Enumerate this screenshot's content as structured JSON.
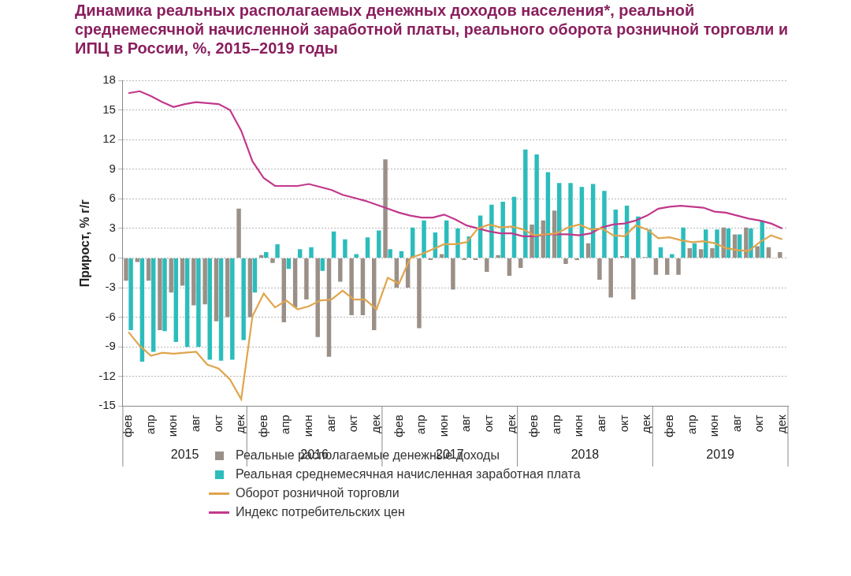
{
  "chart_data": {
    "type": "bar",
    "title": "Динамика реальных располагаемых денежных доходов населения*, реальной среднемесячной начисленной заработной платы, реального оборота розничной торговли и ИПЦ в России, %, 2015–2019 годы",
    "y_label": "Прирост, % г/г",
    "categories": [
      "фев",
      null,
      "апр",
      null,
      "июн",
      null,
      "авг",
      null,
      "окт",
      null,
      "дек",
      null,
      "фев",
      null,
      "апр",
      null,
      "июн",
      null,
      "авг",
      null,
      "окт",
      null,
      "дек",
      null,
      "фев",
      null,
      "апр",
      null,
      "июн",
      null,
      "авг",
      null,
      "окт",
      null,
      "дек",
      null,
      "фев",
      null,
      "апр",
      null,
      "июн",
      null,
      "авг",
      null,
      "окт",
      null,
      "дек",
      null,
      "фев",
      null,
      "апр",
      null,
      "июн",
      null,
      "авг",
      null,
      "окт",
      null,
      "дек"
    ],
    "category_groups": [
      {
        "label": "2015",
        "size": 11
      },
      {
        "label": "2016",
        "size": 12
      },
      {
        "label": "2017",
        "size": 12
      },
      {
        "label": "2018",
        "size": 12
      },
      {
        "label": "2019",
        "size": 12
      }
    ],
    "series": [
      {
        "name": "Реальные располагаемые денежные доходы",
        "type": "bar",
        "color": "#9a9088",
        "values": [
          -2.3,
          -0.4,
          -2.3,
          -7.3,
          -3.5,
          -2.8,
          -4.8,
          -4.7,
          -6.4,
          -6.0,
          5.0,
          -6.0,
          0.3,
          -0.5,
          -6.5,
          -5.0,
          -4.2,
          -8.0,
          -10.0,
          -2.4,
          -5.8,
          -5.8,
          -7.3,
          10.0,
          -3.0,
          -3.0,
          -7.1,
          -0.2,
          0.4,
          -3.2,
          -0.2,
          -0.2,
          -1.4,
          0.3,
          -1.8,
          -1.0,
          3.4,
          3.8,
          4.8,
          -0.6,
          -0.2,
          1.5,
          -2.2,
          -4.0,
          0.2,
          -4.2,
          0.1,
          -1.7,
          -1.7,
          -1.7,
          1.0,
          0.9,
          1.0,
          3.1,
          2.4,
          3.1,
          1.2,
          1.1,
          0.6
        ]
      },
      {
        "name": "Реальная среднемесячная начисленная заработная плата",
        "type": "bar",
        "color": "#2cbcbc",
        "values": [
          -7.3,
          -10.5,
          -9.5,
          -7.4,
          -8.5,
          -9.0,
          -9.0,
          -10.3,
          -10.4,
          -10.3,
          -8.3,
          -3.5,
          0.6,
          1.4,
          -1.1,
          0.9,
          1.1,
          -1.3,
          2.7,
          1.9,
          0.4,
          2.1,
          2.8,
          0.9,
          0.7,
          3.1,
          3.8,
          2.6,
          3.8,
          3.0,
          2.2,
          4.3,
          5.4,
          5.7,
          6.2,
          11.0,
          10.5,
          8.7,
          7.6,
          7.6,
          7.2,
          7.5,
          6.8,
          4.9,
          5.3,
          4.2,
          2.9,
          1.1,
          0.4,
          3.1,
          1.5,
          2.9,
          2.9,
          3.0,
          2.4,
          3.0,
          3.8,
          null,
          null
        ]
      },
      {
        "name": "Оборот розничной торговли",
        "type": "line",
        "color": "#e0a54e",
        "values": [
          -7.5,
          -8.9,
          -9.9,
          -9.6,
          -9.7,
          -9.6,
          -9.5,
          -10.8,
          -11.2,
          -12.3,
          -14.3,
          -5.9,
          -3.6,
          -5.0,
          -4.3,
          -5.2,
          -4.9,
          -4.3,
          -4.2,
          -3.3,
          -4.2,
          -4.2,
          -5.2,
          -2.0,
          -2.6,
          0.0,
          0.4,
          0.9,
          1.4,
          1.4,
          1.6,
          3.0,
          3.4,
          3.1,
          3.2,
          2.9,
          2.3,
          2.4,
          2.5,
          3.1,
          3.4,
          2.9,
          3.0,
          2.3,
          2.2,
          3.3,
          2.9,
          2.0,
          2.1,
          1.8,
          1.6,
          1.7,
          1.5,
          1.0,
          0.8,
          0.7,
          1.6,
          2.3,
          1.9
        ]
      },
      {
        "name": "Индекс потребительских цен",
        "type": "line",
        "color": "#c2388c",
        "values": [
          16.7,
          16.9,
          16.4,
          15.8,
          15.3,
          15.6,
          15.8,
          15.7,
          15.6,
          15.0,
          12.9,
          9.8,
          8.1,
          7.3,
          7.3,
          7.3,
          7.5,
          7.2,
          6.9,
          6.4,
          6.1,
          5.8,
          5.4,
          5.0,
          4.6,
          4.3,
          4.1,
          4.1,
          4.4,
          3.9,
          3.3,
          3.0,
          2.7,
          2.5,
          2.5,
          2.2,
          2.2,
          2.4,
          2.4,
          2.4,
          2.3,
          2.5,
          3.1,
          3.4,
          3.5,
          3.8,
          4.3,
          5.0,
          5.2,
          5.3,
          5.2,
          5.1,
          4.7,
          4.6,
          4.3,
          4.0,
          3.8,
          3.5,
          3.0
        ]
      }
    ],
    "ylim": [
      -15,
      18
    ],
    "yticks": [
      -15,
      -12,
      -9,
      -6,
      -3,
      0,
      3,
      6,
      9,
      12,
      15,
      18
    ],
    "grid": true,
    "legend": "bottom"
  }
}
